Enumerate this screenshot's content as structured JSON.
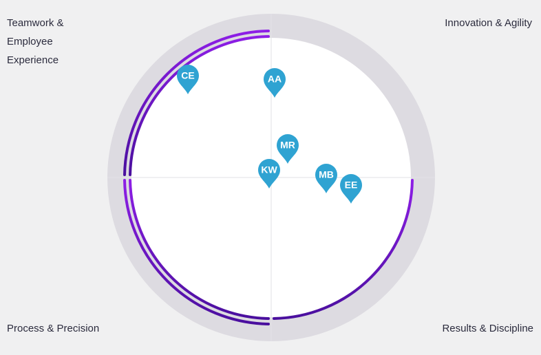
{
  "quadrants": {
    "top_left": "Teamwork & Employee Experience",
    "top_right": "Innovation & Agility",
    "bottom_left": "Process & Precision",
    "bottom_right": "Results & Discipline"
  },
  "pins": [
    {
      "label": "CE"
    },
    {
      "label": "AA"
    },
    {
      "label": "MR"
    },
    {
      "label": "KW"
    },
    {
      "label": "MB"
    },
    {
      "label": "EE"
    }
  ]
}
